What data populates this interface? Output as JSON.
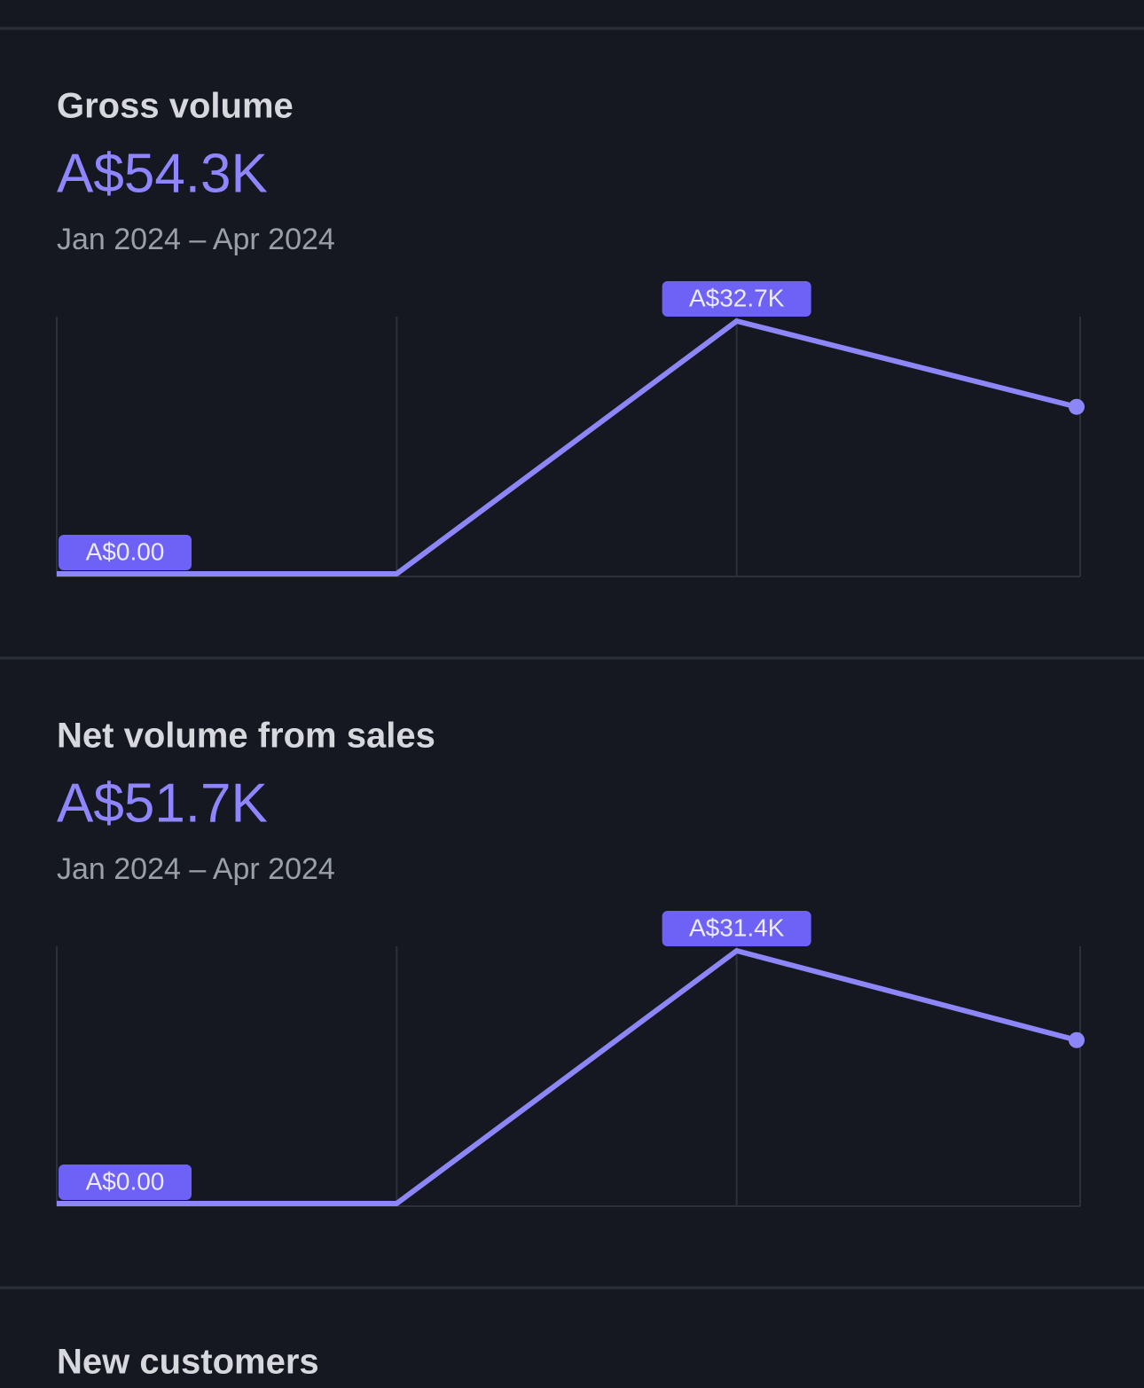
{
  "chart_data": [
    {
      "type": "line",
      "title": "Gross volume",
      "total": "A$54.3K",
      "period": "Jan 2024 – Apr 2024",
      "categories": [
        null,
        null,
        null,
        null
      ],
      "values": [
        0,
        0,
        32700,
        21600
      ],
      "value_labels": [
        "A$0.00",
        null,
        "A$32.7K",
        null
      ],
      "color": "#8d86f8",
      "label_color": "#6e62f6",
      "ylim": [
        0,
        32700
      ]
    },
    {
      "type": "line",
      "title": "Net volume from sales",
      "total": "A$51.7K",
      "period": "Jan 2024 – Apr 2024",
      "categories": [
        null,
        null,
        null,
        null
      ],
      "values": [
        0,
        0,
        31400,
        20300
      ],
      "value_labels": [
        "A$0.00",
        null,
        "A$31.4K",
        null
      ],
      "color": "#8d86f8",
      "label_color": "#6e62f6",
      "ylim": [
        0,
        31400
      ]
    }
  ],
  "next_section": {
    "title": "New customers"
  }
}
